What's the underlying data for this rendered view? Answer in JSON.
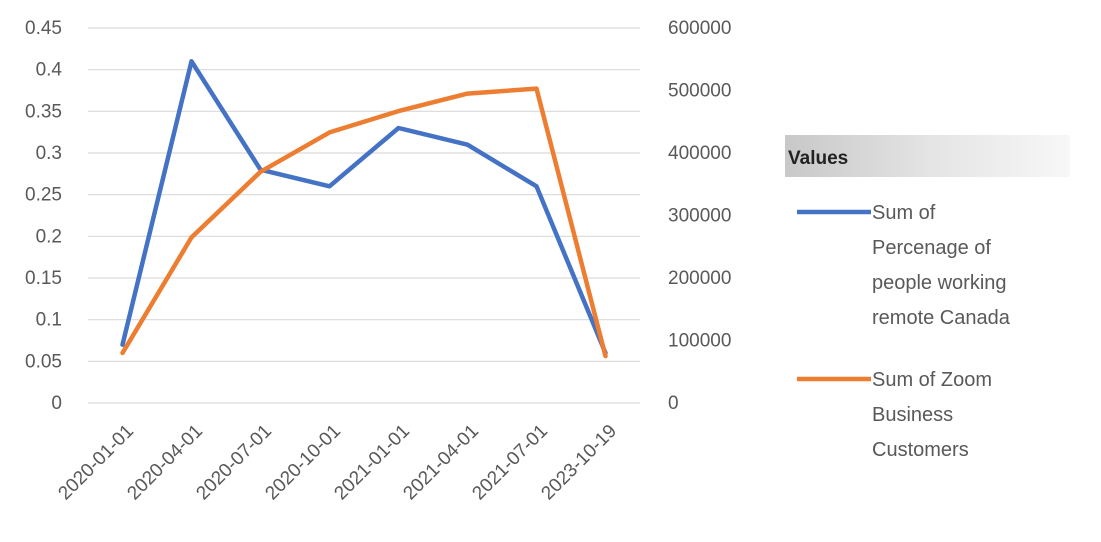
{
  "chart_data": {
    "type": "line",
    "categories": [
      "2020-01-01",
      "2020-04-01",
      "2020-07-01",
      "2020-10-01",
      "2021-01-01",
      "2021-04-01",
      "2021-07-01",
      "2023-10-19"
    ],
    "series": [
      {
        "name": "Sum of Percenage of people working remote Canada",
        "name_lines": [
          "Sum of",
          "Percenage of",
          "people working",
          "remote Canada"
        ],
        "axis": "left",
        "color": "#4472C4",
        "values": [
          0.07,
          0.41,
          0.28,
          0.26,
          0.33,
          0.31,
          0.26,
          0.06
        ]
      },
      {
        "name": "Sum of Zoom Business Customers",
        "name_lines": [
          "Sum of Zoom",
          "Business",
          "Customers"
        ],
        "axis": "right",
        "color": "#ED7D31",
        "values": [
          80000,
          265000,
          370000,
          433000,
          467000,
          495000,
          503000,
          75000
        ]
      }
    ],
    "y_left": {
      "min": 0,
      "max": 0.45,
      "ticks": [
        "0",
        "0.05",
        "0.1",
        "0.15",
        "0.2",
        "0.25",
        "0.3",
        "0.35",
        "0.4",
        "0.45"
      ]
    },
    "y_right": {
      "min": 0,
      "max": 600000,
      "ticks": [
        "0",
        "100000",
        "200000",
        "300000",
        "400000",
        "500000",
        "600000"
      ]
    },
    "grid": true,
    "legend": {
      "title": "Values",
      "placement": "right"
    }
  }
}
